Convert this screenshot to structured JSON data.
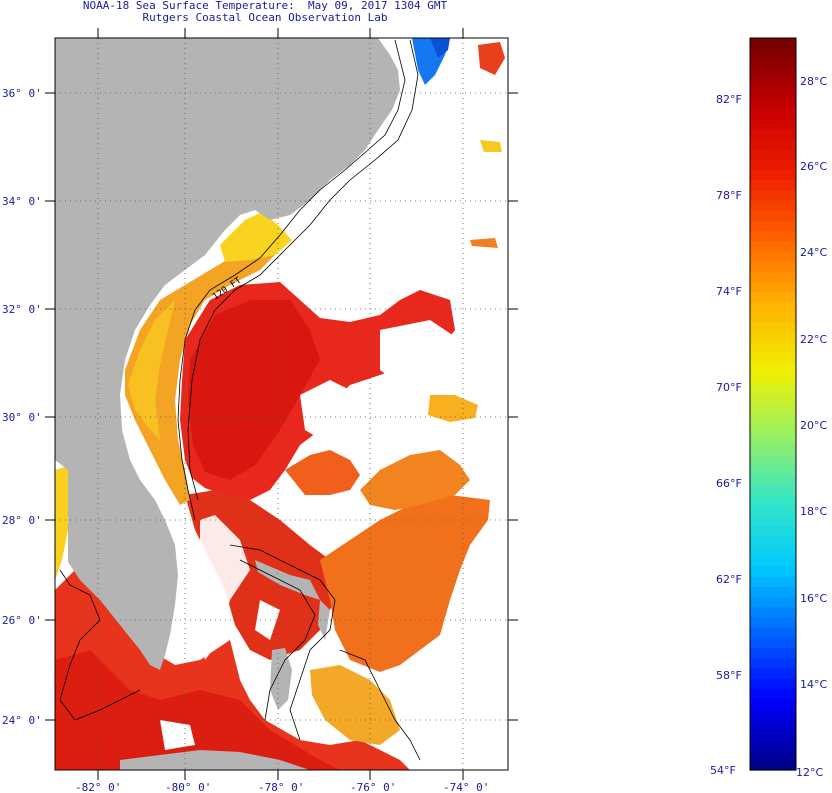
{
  "title": {
    "line1": "NOAA-18 Sea Surface Temperature:  May 09, 2017 1304 GMT",
    "line2": "Rutgers Coastal Ocean Observation Lab"
  },
  "map": {
    "lat_labels": [
      "36° 0'",
      "34° 0'",
      "32° 0'",
      "30° 0'",
      "28° 0'",
      "26° 0'",
      "24° 0'"
    ],
    "lon_labels": [
      "-82° 0'",
      "-80° 0'",
      "-78° 0'",
      "-76° 0'",
      "-74° 0'"
    ],
    "contour_label": "120 FT",
    "colors": {
      "land": "#b4b4b4",
      "cloud": "#ffffff",
      "warm": "#e8281c",
      "hot": "#d8140e",
      "orange": "#f06418",
      "amber": "#f8a020",
      "yellow": "#f8dc20",
      "cold_blue": "#1478f0"
    }
  },
  "colorbar": {
    "fahrenheit_labels": [
      "82°F",
      "78°F",
      "74°F",
      "70°F",
      "66°F",
      "62°F",
      "58°F",
      "54°F"
    ],
    "celsius_labels": [
      "28°C",
      "26°C",
      "24°C",
      "22°C",
      "20°C",
      "18°C",
      "16°C",
      "14°C",
      "12°C"
    ],
    "range_c": [
      12,
      29
    ],
    "stops": [
      "#00008c",
      "#0000ff",
      "#0064ff",
      "#00c8ff",
      "#32e6c8",
      "#96f064",
      "#f0f000",
      "#ffb400",
      "#ff6400",
      "#f01e00",
      "#c80000",
      "#780000"
    ]
  }
}
